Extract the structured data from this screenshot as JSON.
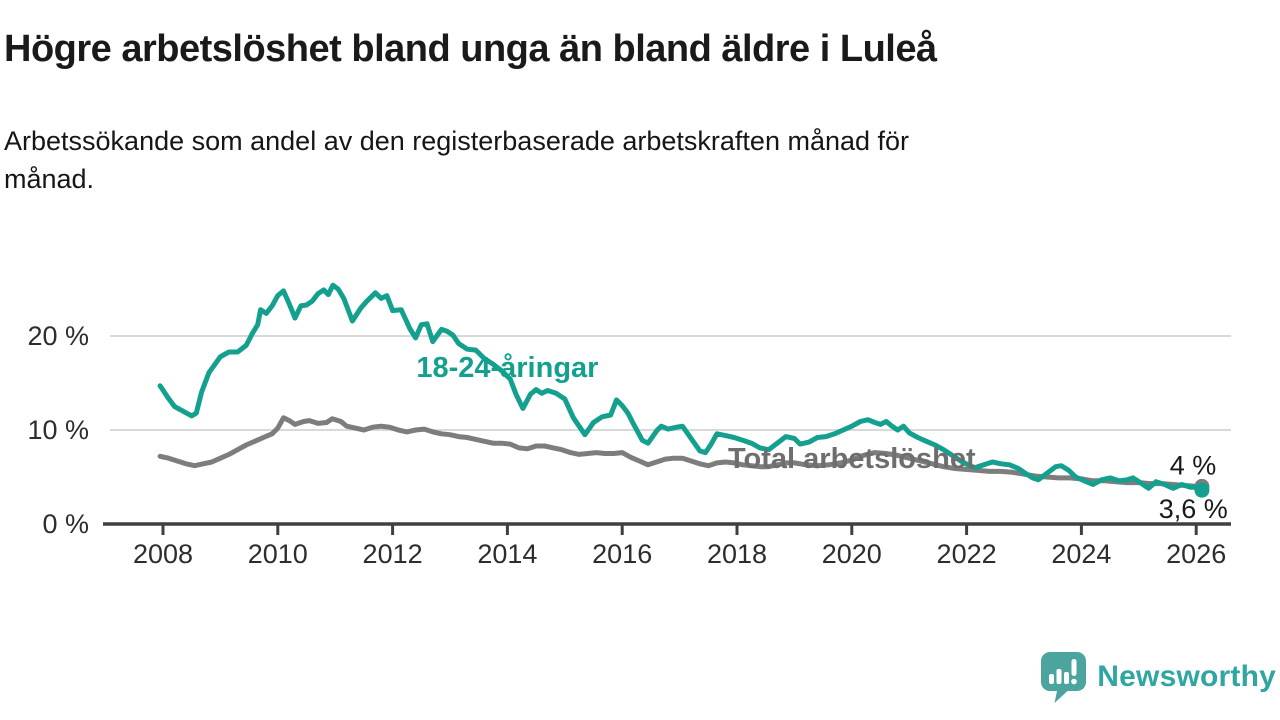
{
  "header": {
    "title": "Högre arbetslöshet bland unga än bland äldre i Luleå",
    "subtitle_line1": "Arbetssökande som andel av den registerbaserade arbetskraften månad för",
    "subtitle_line2": "månad."
  },
  "colors": {
    "youth_line": "#14a08e",
    "total_line": "#7d7d7d",
    "total_label": "#6e6e6e",
    "axis": "#3f3f3f",
    "grid": "#d9d9d9",
    "tick_text": "#2d2d2d",
    "annotation_text": "#1a1a1a",
    "brand_icon": "#4ba49e",
    "brand_text": "#2fa6a1"
  },
  "footer": {
    "brand": "Newsworthy",
    "icon": "speech-bubble-bar-chart-exclamation-icon"
  },
  "chart_data": {
    "type": "line",
    "title": "Högre arbetslöshet bland unga än bland äldre i Luleå",
    "xlabel": "",
    "ylabel": "",
    "x_range": [
      2007.8,
      2026.75
    ],
    "y_range": [
      0,
      27
    ],
    "grid": "horizontal",
    "x_ticks": [
      2008,
      2010,
      2012,
      2014,
      2016,
      2018,
      2020,
      2022,
      2024,
      2026
    ],
    "y_ticks": [
      {
        "v": 0,
        "label": "0 %"
      },
      {
        "v": 10,
        "label": "10 %"
      },
      {
        "v": 20,
        "label": "20 %"
      }
    ],
    "annotations": [
      {
        "text": "4 %",
        "x": 2026.35,
        "y": 6.2,
        "anchor": "end"
      },
      {
        "text": "3,6 %",
        "x": 2026.55,
        "y": 1.6,
        "anchor": "end"
      }
    ],
    "series": [
      {
        "name": "Total arbetslöshet",
        "color_key": "total_line",
        "end_dot": true,
        "label": {
          "text": "Total arbetslöshet",
          "x": 2020.0,
          "y": 7.0,
          "color_key": "total_label"
        },
        "points": [
          [
            2007.95,
            7.2
          ],
          [
            2008.1,
            7.0
          ],
          [
            2008.25,
            6.7
          ],
          [
            2008.4,
            6.4
          ],
          [
            2008.55,
            6.2
          ],
          [
            2008.7,
            6.4
          ],
          [
            2008.85,
            6.6
          ],
          [
            2009.0,
            7.0
          ],
          [
            2009.15,
            7.4
          ],
          [
            2009.3,
            7.9
          ],
          [
            2009.45,
            8.4
          ],
          [
            2009.6,
            8.8
          ],
          [
            2009.75,
            9.2
          ],
          [
            2009.9,
            9.6
          ],
          [
            2010.0,
            10.2
          ],
          [
            2010.1,
            11.3
          ],
          [
            2010.2,
            11.0
          ],
          [
            2010.3,
            10.6
          ],
          [
            2010.45,
            10.9
          ],
          [
            2010.55,
            11.0
          ],
          [
            2010.7,
            10.7
          ],
          [
            2010.85,
            10.8
          ],
          [
            2010.95,
            11.2
          ],
          [
            2011.1,
            10.9
          ],
          [
            2011.2,
            10.4
          ],
          [
            2011.35,
            10.2
          ],
          [
            2011.5,
            10.0
          ],
          [
            2011.65,
            10.3
          ],
          [
            2011.8,
            10.4
          ],
          [
            2011.95,
            10.3
          ],
          [
            2012.1,
            10.0
          ],
          [
            2012.25,
            9.8
          ],
          [
            2012.4,
            10.0
          ],
          [
            2012.55,
            10.1
          ],
          [
            2012.7,
            9.8
          ],
          [
            2012.85,
            9.6
          ],
          [
            2013.0,
            9.5
          ],
          [
            2013.15,
            9.3
          ],
          [
            2013.3,
            9.2
          ],
          [
            2013.45,
            9.0
          ],
          [
            2013.6,
            8.8
          ],
          [
            2013.75,
            8.6
          ],
          [
            2013.9,
            8.6
          ],
          [
            2014.05,
            8.5
          ],
          [
            2014.2,
            8.1
          ],
          [
            2014.35,
            8.0
          ],
          [
            2014.5,
            8.3
          ],
          [
            2014.65,
            8.3
          ],
          [
            2014.8,
            8.1
          ],
          [
            2014.95,
            7.9
          ],
          [
            2015.1,
            7.6
          ],
          [
            2015.25,
            7.4
          ],
          [
            2015.4,
            7.5
          ],
          [
            2015.55,
            7.6
          ],
          [
            2015.7,
            7.5
          ],
          [
            2015.85,
            7.5
          ],
          [
            2016.0,
            7.6
          ],
          [
            2016.15,
            7.1
          ],
          [
            2016.3,
            6.7
          ],
          [
            2016.45,
            6.3
          ],
          [
            2016.6,
            6.6
          ],
          [
            2016.75,
            6.9
          ],
          [
            2016.9,
            7.0
          ],
          [
            2017.05,
            7.0
          ],
          [
            2017.2,
            6.7
          ],
          [
            2017.35,
            6.4
          ],
          [
            2017.5,
            6.2
          ],
          [
            2017.65,
            6.5
          ],
          [
            2017.8,
            6.6
          ],
          [
            2017.95,
            6.5
          ],
          [
            2018.1,
            6.3
          ],
          [
            2018.25,
            6.2
          ],
          [
            2018.4,
            6.1
          ],
          [
            2018.55,
            6.1
          ],
          [
            2018.7,
            6.3
          ],
          [
            2018.85,
            6.5
          ],
          [
            2019.0,
            6.5
          ],
          [
            2019.2,
            6.3
          ],
          [
            2019.4,
            6.2
          ],
          [
            2019.6,
            6.3
          ],
          [
            2019.8,
            6.5
          ],
          [
            2020.0,
            6.8
          ],
          [
            2020.2,
            7.3
          ],
          [
            2020.4,
            7.6
          ],
          [
            2020.6,
            7.5
          ],
          [
            2020.8,
            7.3
          ],
          [
            2021.0,
            7.0
          ],
          [
            2021.2,
            6.7
          ],
          [
            2021.4,
            6.4
          ],
          [
            2021.6,
            6.1
          ],
          [
            2021.8,
            5.9
          ],
          [
            2022.0,
            5.8
          ],
          [
            2022.2,
            5.7
          ],
          [
            2022.4,
            5.6
          ],
          [
            2022.6,
            5.6
          ],
          [
            2022.8,
            5.5
          ],
          [
            2023.0,
            5.3
          ],
          [
            2023.2,
            5.1
          ],
          [
            2023.4,
            5.0
          ],
          [
            2023.6,
            4.9
          ],
          [
            2023.8,
            4.9
          ],
          [
            2024.0,
            4.8
          ],
          [
            2024.2,
            4.6
          ],
          [
            2024.4,
            4.6
          ],
          [
            2024.6,
            4.5
          ],
          [
            2024.8,
            4.4
          ],
          [
            2025.0,
            4.4
          ],
          [
            2025.2,
            4.3
          ],
          [
            2025.4,
            4.3
          ],
          [
            2025.6,
            4.2
          ],
          [
            2025.8,
            4.1
          ],
          [
            2026.0,
            4.0
          ],
          [
            2026.1,
            4.0
          ]
        ]
      },
      {
        "name": "18-24-åringar",
        "color_key": "youth_line",
        "end_dot": true,
        "label": {
          "text": "18-24-åringar",
          "x": 2014.0,
          "y": 16.7,
          "color_key": "youth_line"
        },
        "points": [
          [
            2007.95,
            14.7
          ],
          [
            2008.08,
            13.5
          ],
          [
            2008.2,
            12.5
          ],
          [
            2008.35,
            12.0
          ],
          [
            2008.5,
            11.5
          ],
          [
            2008.58,
            11.8
          ],
          [
            2008.67,
            14.0
          ],
          [
            2008.8,
            16.1
          ],
          [
            2009.0,
            17.8
          ],
          [
            2009.15,
            18.3
          ],
          [
            2009.3,
            18.3
          ],
          [
            2009.45,
            19.0
          ],
          [
            2009.55,
            20.2
          ],
          [
            2009.65,
            21.2
          ],
          [
            2009.7,
            22.8
          ],
          [
            2009.8,
            22.4
          ],
          [
            2009.9,
            23.2
          ],
          [
            2010.0,
            24.3
          ],
          [
            2010.1,
            24.8
          ],
          [
            2010.2,
            23.4
          ],
          [
            2010.3,
            21.9
          ],
          [
            2010.4,
            23.2
          ],
          [
            2010.5,
            23.3
          ],
          [
            2010.6,
            23.7
          ],
          [
            2010.7,
            24.5
          ],
          [
            2010.8,
            24.9
          ],
          [
            2010.88,
            24.4
          ],
          [
            2010.96,
            25.4
          ],
          [
            2011.05,
            25.0
          ],
          [
            2011.15,
            24.0
          ],
          [
            2011.3,
            21.6
          ],
          [
            2011.45,
            23.0
          ],
          [
            2011.55,
            23.7
          ],
          [
            2011.7,
            24.6
          ],
          [
            2011.8,
            24.0
          ],
          [
            2011.9,
            24.3
          ],
          [
            2012.0,
            22.7
          ],
          [
            2012.15,
            22.8
          ],
          [
            2012.3,
            20.8
          ],
          [
            2012.4,
            19.8
          ],
          [
            2012.5,
            21.2
          ],
          [
            2012.6,
            21.3
          ],
          [
            2012.7,
            19.4
          ],
          [
            2012.85,
            20.7
          ],
          [
            2012.95,
            20.5
          ],
          [
            2013.05,
            20.1
          ],
          [
            2013.15,
            19.2
          ],
          [
            2013.3,
            18.6
          ],
          [
            2013.45,
            18.5
          ],
          [
            2013.6,
            17.6
          ],
          [
            2013.75,
            17.0
          ],
          [
            2013.9,
            16.3
          ],
          [
            2014.05,
            15.4
          ],
          [
            2014.15,
            13.8
          ],
          [
            2014.27,
            12.3
          ],
          [
            2014.4,
            13.8
          ],
          [
            2014.5,
            14.3
          ],
          [
            2014.6,
            13.9
          ],
          [
            2014.7,
            14.2
          ],
          [
            2014.85,
            13.9
          ],
          [
            2015.0,
            13.3
          ],
          [
            2015.15,
            11.3
          ],
          [
            2015.35,
            9.5
          ],
          [
            2015.5,
            10.8
          ],
          [
            2015.65,
            11.4
          ],
          [
            2015.8,
            11.6
          ],
          [
            2015.9,
            13.2
          ],
          [
            2016.0,
            12.6
          ],
          [
            2016.1,
            11.8
          ],
          [
            2016.2,
            10.6
          ],
          [
            2016.35,
            8.9
          ],
          [
            2016.45,
            8.6
          ],
          [
            2016.6,
            9.9
          ],
          [
            2016.68,
            10.4
          ],
          [
            2016.8,
            10.1
          ],
          [
            2016.95,
            10.3
          ],
          [
            2017.05,
            10.4
          ],
          [
            2017.2,
            9.1
          ],
          [
            2017.35,
            7.8
          ],
          [
            2017.45,
            7.6
          ],
          [
            2017.55,
            8.5
          ],
          [
            2017.65,
            9.6
          ],
          [
            2017.8,
            9.4
          ],
          [
            2017.95,
            9.2
          ],
          [
            2018.1,
            8.9
          ],
          [
            2018.25,
            8.6
          ],
          [
            2018.4,
            8.1
          ],
          [
            2018.55,
            7.9
          ],
          [
            2018.7,
            8.6
          ],
          [
            2018.85,
            9.3
          ],
          [
            2019.0,
            9.1
          ],
          [
            2019.1,
            8.5
          ],
          [
            2019.25,
            8.7
          ],
          [
            2019.4,
            9.2
          ],
          [
            2019.55,
            9.3
          ],
          [
            2019.7,
            9.6
          ],
          [
            2019.85,
            10.0
          ],
          [
            2020.0,
            10.4
          ],
          [
            2020.15,
            10.9
          ],
          [
            2020.28,
            11.1
          ],
          [
            2020.4,
            10.8
          ],
          [
            2020.5,
            10.6
          ],
          [
            2020.6,
            10.9
          ],
          [
            2020.7,
            10.4
          ],
          [
            2020.8,
            10.0
          ],
          [
            2020.9,
            10.4
          ],
          [
            2021.0,
            9.7
          ],
          [
            2021.15,
            9.2
          ],
          [
            2021.3,
            8.8
          ],
          [
            2021.45,
            8.4
          ],
          [
            2021.6,
            7.9
          ],
          [
            2021.75,
            7.3
          ],
          [
            2021.9,
            6.7
          ],
          [
            2022.05,
            6.2
          ],
          [
            2022.15,
            6.0
          ],
          [
            2022.3,
            6.3
          ],
          [
            2022.45,
            6.6
          ],
          [
            2022.6,
            6.4
          ],
          [
            2022.75,
            6.3
          ],
          [
            2022.9,
            5.9
          ],
          [
            2023.0,
            5.5
          ],
          [
            2023.15,
            4.9
          ],
          [
            2023.25,
            4.7
          ],
          [
            2023.4,
            5.4
          ],
          [
            2023.55,
            6.1
          ],
          [
            2023.65,
            6.2
          ],
          [
            2023.78,
            5.7
          ],
          [
            2023.9,
            5.0
          ],
          [
            2024.05,
            4.6
          ],
          [
            2024.2,
            4.2
          ],
          [
            2024.35,
            4.7
          ],
          [
            2024.5,
            4.9
          ],
          [
            2024.65,
            4.6
          ],
          [
            2024.8,
            4.7
          ],
          [
            2024.9,
            4.9
          ],
          [
            2025.05,
            4.3
          ],
          [
            2025.17,
            3.8
          ],
          [
            2025.3,
            4.5
          ],
          [
            2025.45,
            4.2
          ],
          [
            2025.6,
            3.8
          ],
          [
            2025.75,
            4.2
          ],
          [
            2025.9,
            3.9
          ],
          [
            2026.0,
            3.9
          ],
          [
            2026.1,
            3.6
          ]
        ]
      }
    ]
  }
}
